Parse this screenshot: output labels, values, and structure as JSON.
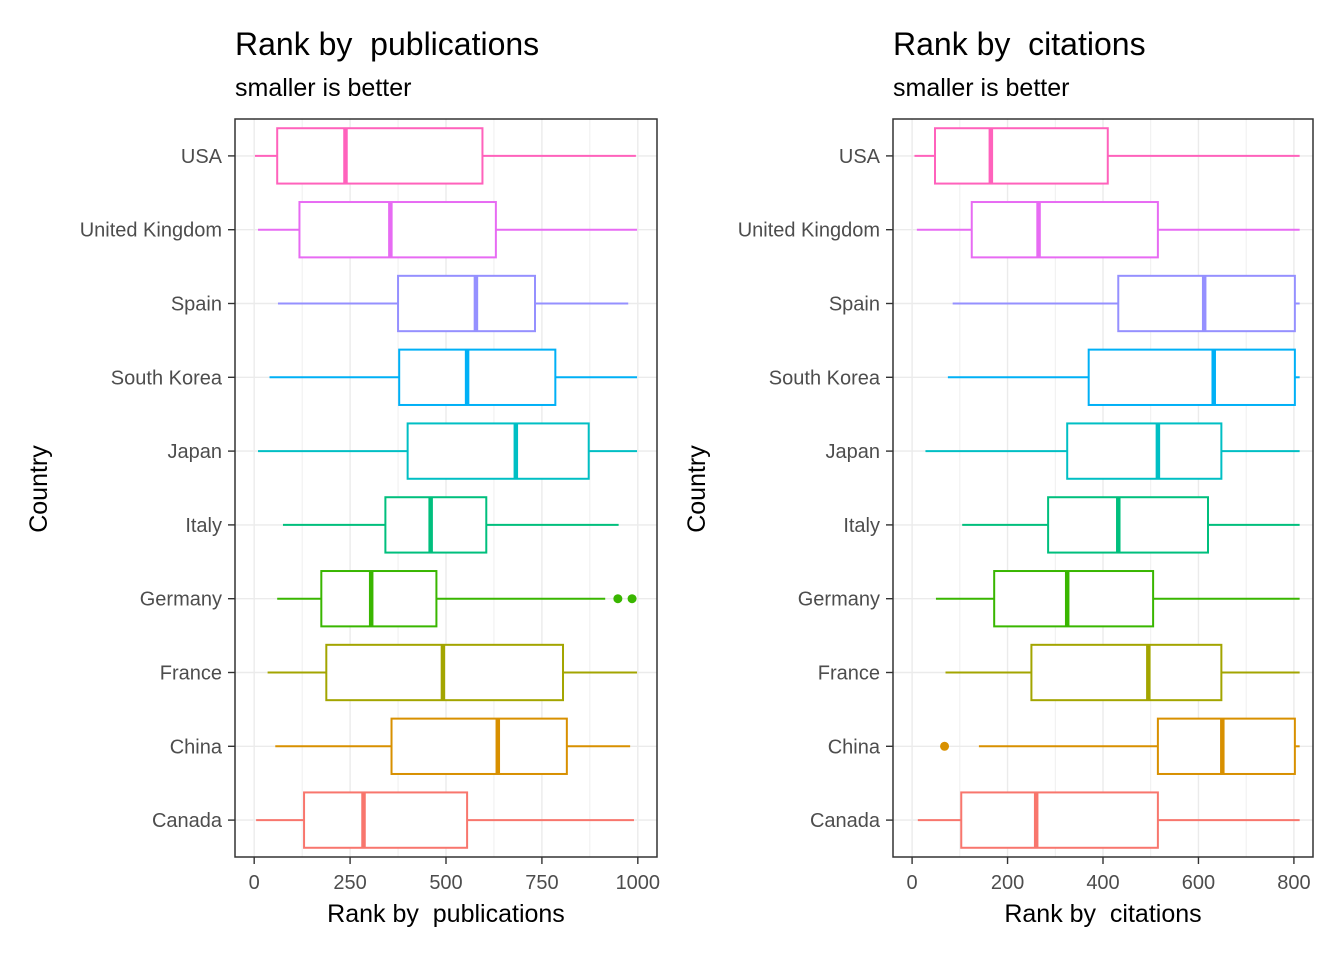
{
  "chart_data": [
    {
      "type": "boxplot",
      "orientation": "horizontal",
      "title": "Rank by  publications",
      "subtitle": "smaller is better",
      "xlabel": "Rank by  publications",
      "ylabel": "Country",
      "xlim": [
        -50,
        1050
      ],
      "xticks": [
        0,
        250,
        500,
        750,
        1000
      ],
      "grid": true,
      "legend": "none",
      "categories": [
        "Canada",
        "China",
        "France",
        "Germany",
        "Italy",
        "Japan",
        "South Korea",
        "Spain",
        "United Kingdom",
        "USA"
      ],
      "colors": [
        "#F8766D",
        "#D89000",
        "#A3A500",
        "#39B600",
        "#00BF7D",
        "#00BFC4",
        "#00B0F6",
        "#9590FF",
        "#E76BF3",
        "#FF62BC"
      ],
      "series": [
        {
          "category": "Canada",
          "whisker_low": 5,
          "q1": 130,
          "median": 285,
          "q3": 555,
          "whisker_high": 990,
          "outliers": []
        },
        {
          "category": "China",
          "whisker_low": 55,
          "q1": 358,
          "median": 635,
          "q3": 815,
          "whisker_high": 980,
          "outliers": []
        },
        {
          "category": "France",
          "whisker_low": 35,
          "q1": 188,
          "median": 492,
          "q3": 805,
          "whisker_high": 998,
          "outliers": []
        },
        {
          "category": "Germany",
          "whisker_low": 60,
          "q1": 175,
          "median": 305,
          "q3": 475,
          "whisker_high": 915,
          "outliers": [
            948,
            985
          ]
        },
        {
          "category": "Italy",
          "whisker_low": 75,
          "q1": 342,
          "median": 460,
          "q3": 605,
          "whisker_high": 950,
          "outliers": []
        },
        {
          "category": "Japan",
          "whisker_low": 10,
          "q1": 400,
          "median": 682,
          "q3": 872,
          "whisker_high": 998,
          "outliers": []
        },
        {
          "category": "South Korea",
          "whisker_low": 40,
          "q1": 378,
          "median": 555,
          "q3": 785,
          "whisker_high": 998,
          "outliers": []
        },
        {
          "category": "Spain",
          "whisker_low": 62,
          "q1": 375,
          "median": 578,
          "q3": 732,
          "whisker_high": 975,
          "outliers": []
        },
        {
          "category": "United Kingdom",
          "whisker_low": 10,
          "q1": 118,
          "median": 355,
          "q3": 630,
          "whisker_high": 998,
          "outliers": []
        },
        {
          "category": "USA",
          "whisker_low": 2,
          "q1": 60,
          "median": 238,
          "q3": 595,
          "whisker_high": 995,
          "outliers": []
        }
      ]
    },
    {
      "type": "boxplot",
      "orientation": "horizontal",
      "title": "Rank by  citations",
      "subtitle": "smaller is better",
      "xlabel": "Rank by  citations",
      "ylabel": "Country",
      "xlim": [
        -40,
        840
      ],
      "xticks": [
        0,
        200,
        400,
        600,
        800
      ],
      "grid": true,
      "legend": "none",
      "categories": [
        "Canada",
        "China",
        "France",
        "Germany",
        "Italy",
        "Japan",
        "South Korea",
        "Spain",
        "United Kingdom",
        "USA"
      ],
      "colors": [
        "#F8766D",
        "#D89000",
        "#A3A500",
        "#39B600",
        "#00BF7D",
        "#00BFC4",
        "#00B0F6",
        "#9590FF",
        "#E76BF3",
        "#FF62BC"
      ],
      "series": [
        {
          "category": "Canada",
          "whisker_low": 12,
          "q1": 103,
          "median": 260,
          "q3": 515,
          "whisker_high": 812,
          "outliers": []
        },
        {
          "category": "China",
          "whisker_low": 140,
          "q1": 515,
          "median": 650,
          "q3": 802,
          "whisker_high": 812,
          "outliers": [
            68
          ]
        },
        {
          "category": "France",
          "whisker_low": 70,
          "q1": 250,
          "median": 495,
          "q3": 648,
          "whisker_high": 812,
          "outliers": []
        },
        {
          "category": "Germany",
          "whisker_low": 50,
          "q1": 172,
          "median": 325,
          "q3": 505,
          "whisker_high": 812,
          "outliers": []
        },
        {
          "category": "Italy",
          "whisker_low": 105,
          "q1": 285,
          "median": 432,
          "q3": 620,
          "whisker_high": 812,
          "outliers": []
        },
        {
          "category": "Japan",
          "whisker_low": 28,
          "q1": 325,
          "median": 515,
          "q3": 648,
          "whisker_high": 812,
          "outliers": []
        },
        {
          "category": "South Korea",
          "whisker_low": 75,
          "q1": 370,
          "median": 632,
          "q3": 802,
          "whisker_high": 812,
          "outliers": []
        },
        {
          "category": "Spain",
          "whisker_low": 85,
          "q1": 432,
          "median": 612,
          "q3": 802,
          "whisker_high": 812,
          "outliers": []
        },
        {
          "category": "United Kingdom",
          "whisker_low": 10,
          "q1": 125,
          "median": 265,
          "q3": 515,
          "whisker_high": 812,
          "outliers": []
        },
        {
          "category": "USA",
          "whisker_low": 5,
          "q1": 48,
          "median": 165,
          "q3": 410,
          "whisker_high": 812,
          "outliers": []
        }
      ]
    }
  ]
}
